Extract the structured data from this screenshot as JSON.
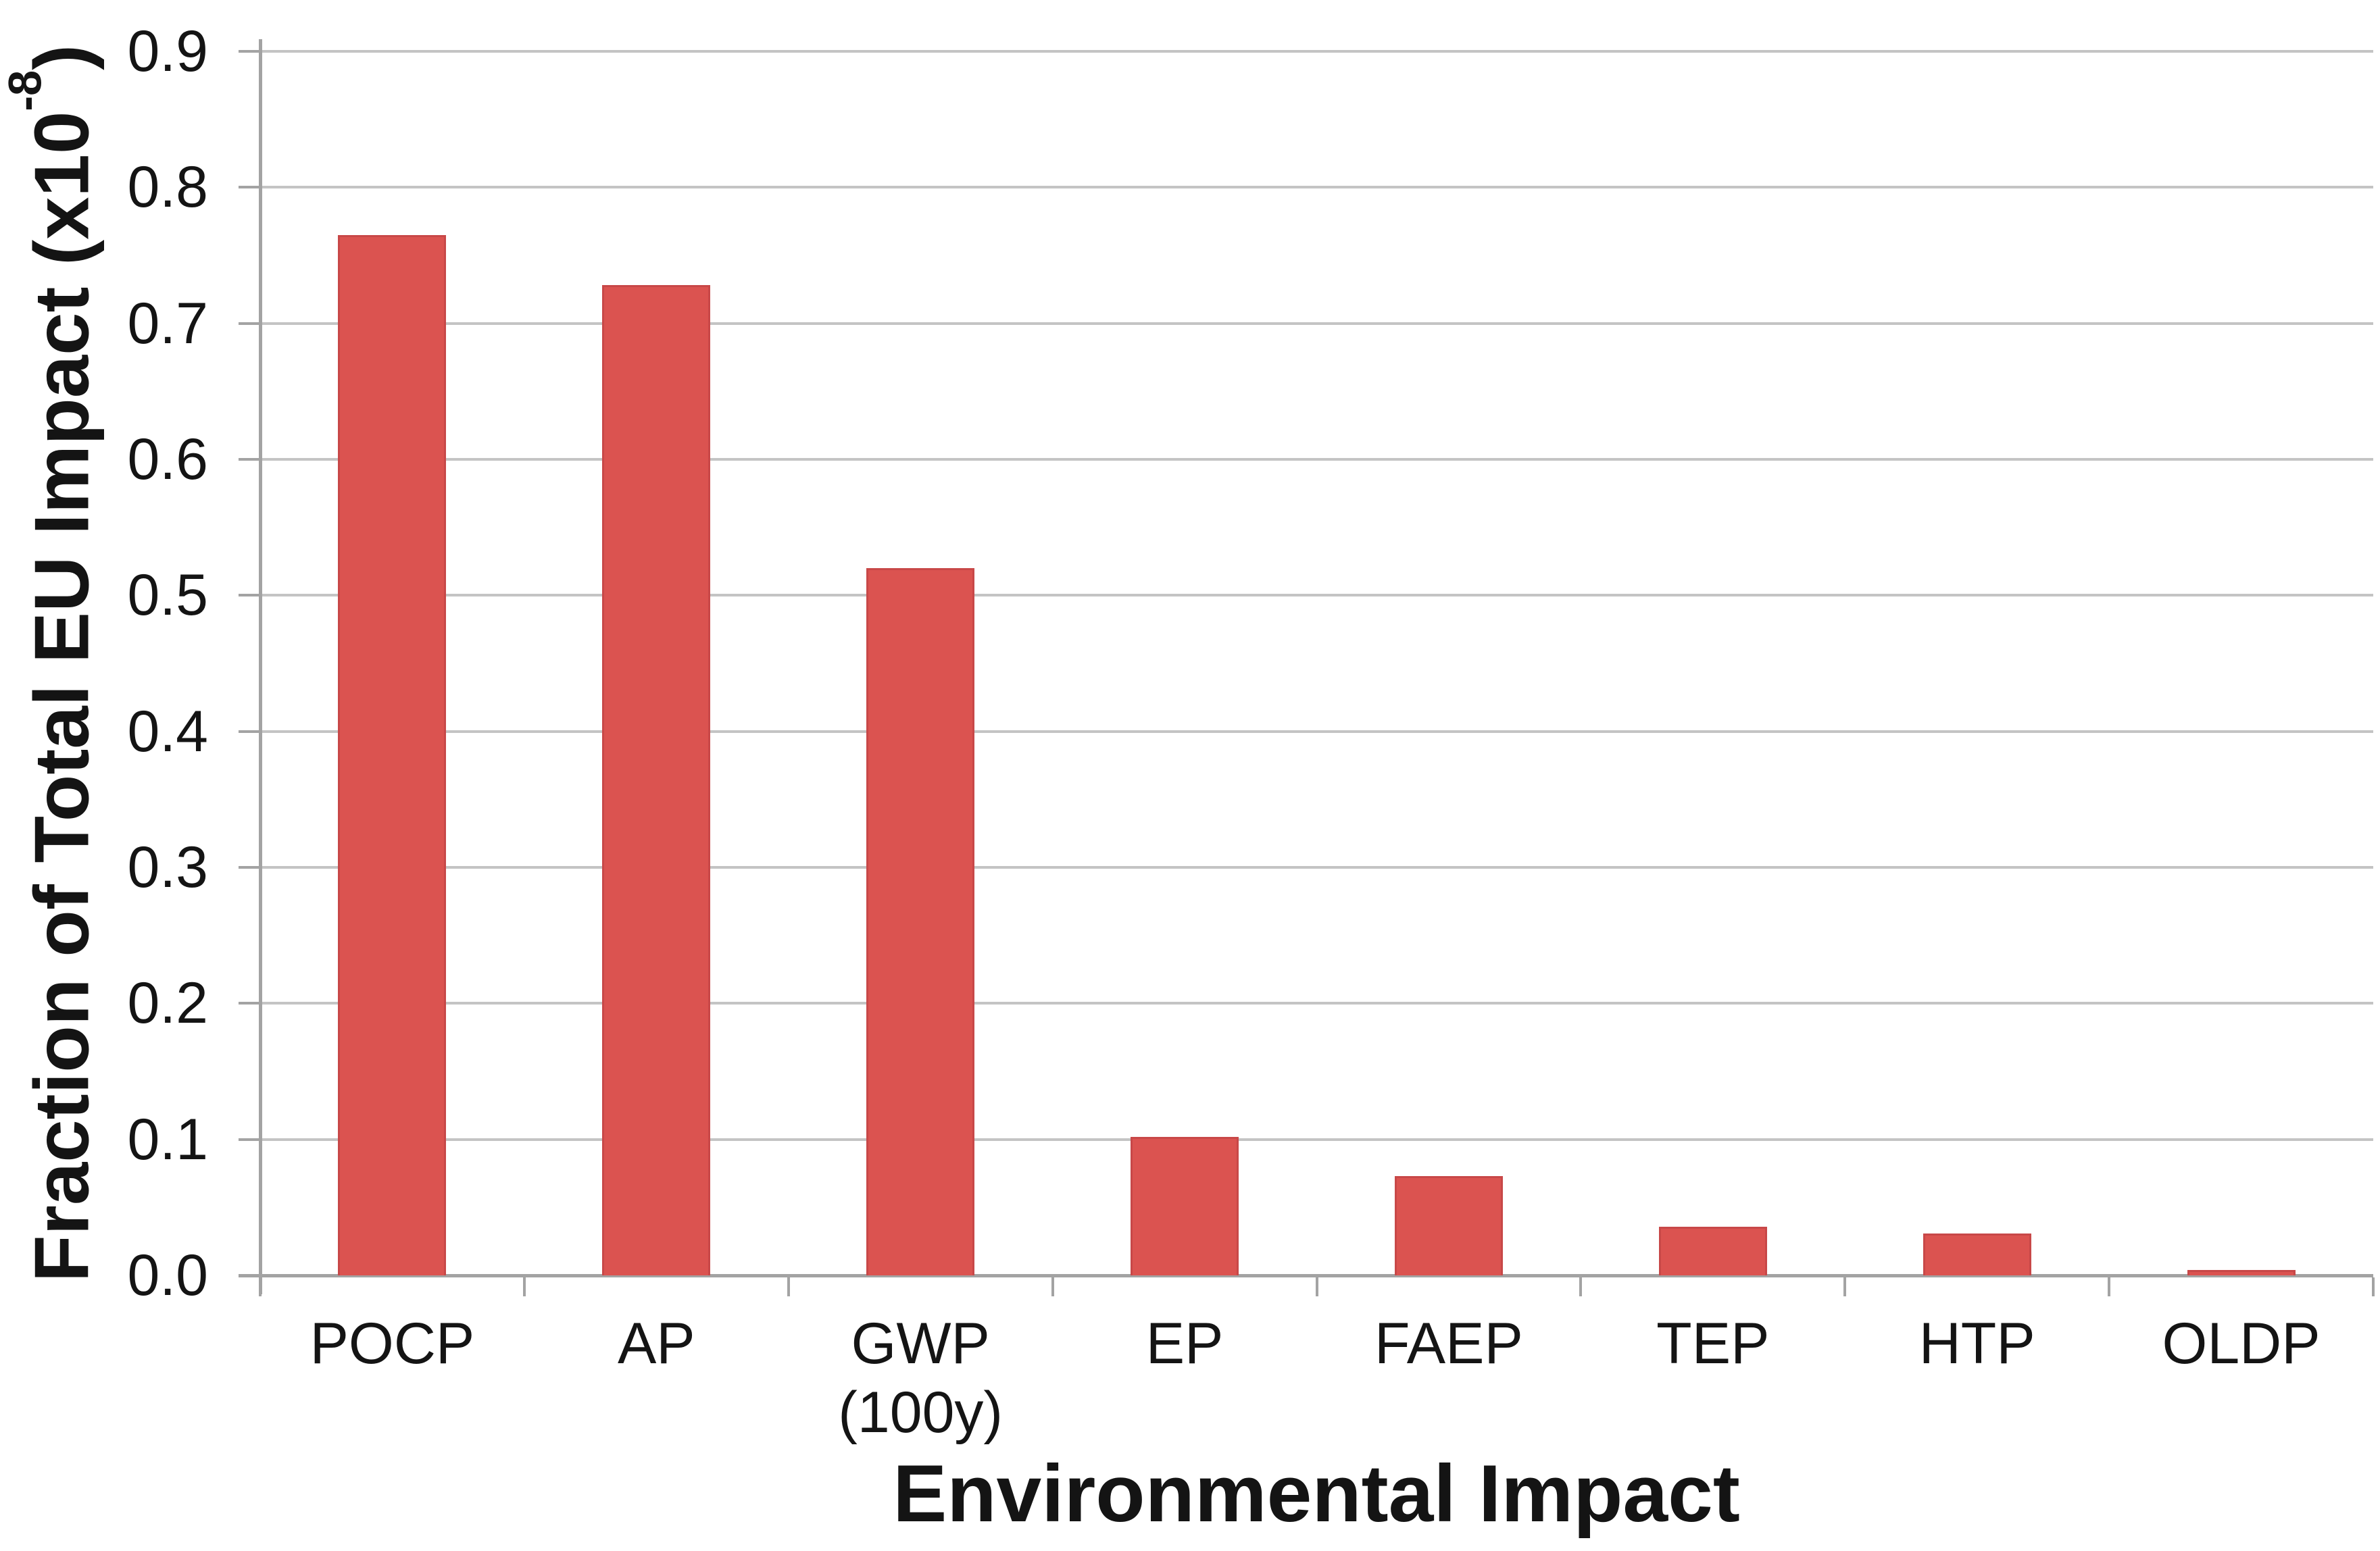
{
  "chart_data": {
    "type": "bar",
    "title": "",
    "xlabel": "Environmental Impact",
    "ylabel": "Fraction of Total EU Impact (x10-8)",
    "ylabel_parts": {
      "prefix": "Fraction of Total EU Impact (x10",
      "sup": "-8",
      "suffix": ")"
    },
    "categories": [
      {
        "label": "POCP",
        "sublabel": ""
      },
      {
        "label": "AP",
        "sublabel": ""
      },
      {
        "label": "GWP",
        "sublabel": "(100y)"
      },
      {
        "label": "EP",
        "sublabel": ""
      },
      {
        "label": "FAEP",
        "sublabel": ""
      },
      {
        "label": "TEP",
        "sublabel": ""
      },
      {
        "label": "HTP",
        "sublabel": ""
      },
      {
        "label": "OLDP",
        "sublabel": ""
      }
    ],
    "values": [
      0.765,
      0.728,
      0.52,
      0.102,
      0.073,
      0.036,
      0.031,
      0.004
    ],
    "ylim": [
      0,
      0.9
    ],
    "ytick_step": 0.1,
    "yticks": [
      "0.0",
      "0.1",
      "0.2",
      "0.3",
      "0.4",
      "0.5",
      "0.6",
      "0.7",
      "0.8",
      "0.9"
    ],
    "grid": "horizontal-only",
    "legend": "none",
    "bar_color": "#DB5350",
    "bar_edge_color": "#C84848",
    "gridline_color": "#C4C4C4",
    "axis_color": "#A3A3A3",
    "text_color": "#141414",
    "background_color": "#FFFFFF"
  }
}
